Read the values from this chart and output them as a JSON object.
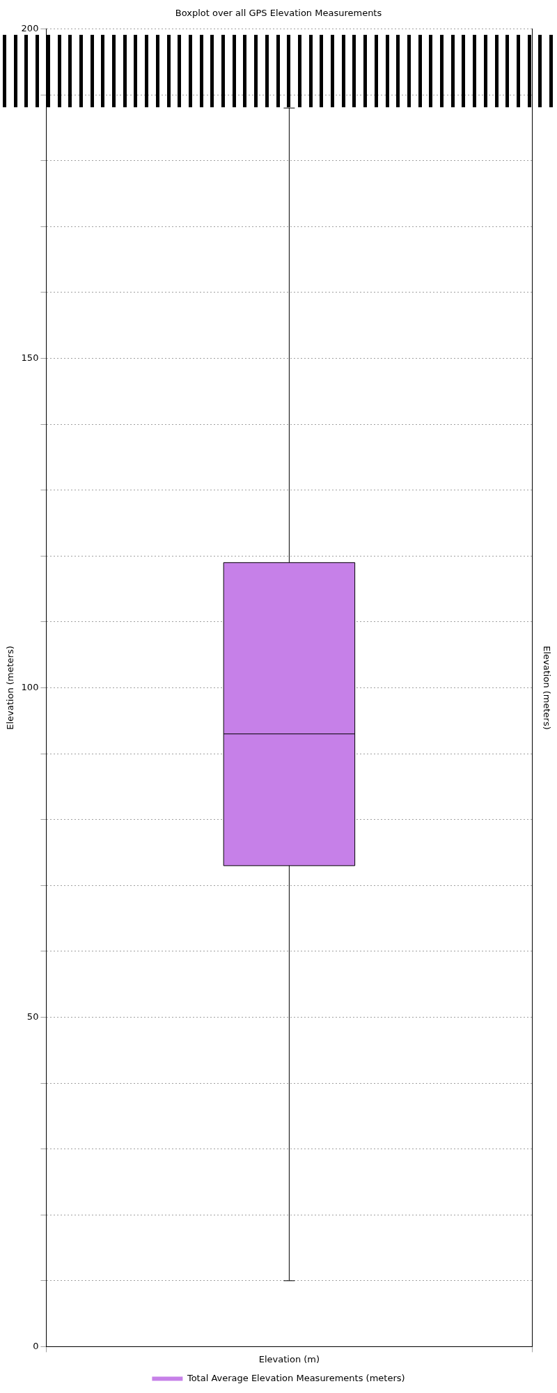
{
  "chart_data": {
    "type": "box",
    "title": "Boxplot over all GPS Elevation Measurements",
    "categories": [
      "Elevation (m)"
    ],
    "ylabel": "Elevation (meters)",
    "y2label": "Elevation (meters)",
    "series": [
      {
        "name": "Total Average Elevation Measurements (meters)",
        "color": "#c680e8",
        "boxes": [
          {
            "low": 10,
            "q1": 73,
            "median": 93,
            "q3": 119,
            "high": 188
          }
        ]
      }
    ],
    "ylim": [
      0,
      200
    ],
    "yticks": [
      0,
      {
        "value": 10,
        "label": null
      },
      {
        "value": 20,
        "label": null
      },
      {
        "value": 30,
        "label": null
      },
      {
        "value": 40,
        "label": null
      },
      50,
      {
        "value": 60,
        "label": null
      },
      {
        "value": 70,
        "label": null
      },
      {
        "value": 80,
        "label": null
      },
      {
        "value": 90,
        "label": null
      },
      100,
      {
        "value": 110,
        "label": null
      },
      {
        "value": 120,
        "label": null
      },
      {
        "value": 130,
        "label": null
      },
      {
        "value": 140,
        "label": null
      },
      150,
      {
        "value": 160,
        "label": null
      },
      {
        "value": 170,
        "label": null
      },
      {
        "value": 180,
        "label": null
      },
      {
        "value": 190,
        "label": null
      },
      200
    ],
    "grid": true,
    "legend": "bottom"
  }
}
